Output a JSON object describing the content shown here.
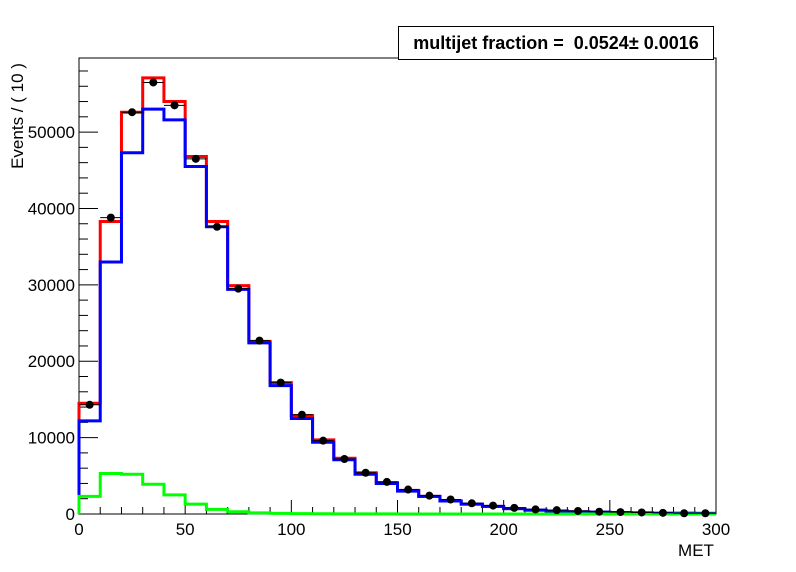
{
  "chart_data": {
    "type": "histogram",
    "xlabel": "MET",
    "ylabel": "Events / ( 10 )",
    "xlim": [
      0,
      300
    ],
    "ylim": [
      0,
      59700
    ],
    "x_ticks": [
      0,
      50,
      100,
      150,
      200,
      250,
      300
    ],
    "y_ticks": [
      0,
      10000,
      20000,
      30000,
      40000,
      50000
    ],
    "bin_edges": [
      0,
      10,
      20,
      30,
      40,
      50,
      60,
      70,
      80,
      90,
      100,
      110,
      120,
      130,
      140,
      150,
      160,
      170,
      180,
      190,
      200,
      210,
      220,
      230,
      240,
      250,
      260,
      270,
      280,
      290,
      300
    ],
    "data_points": {
      "x": [
        5,
        15,
        25,
        35,
        45,
        55,
        65,
        75,
        85,
        95,
        105,
        115,
        125,
        135,
        145,
        155,
        165,
        175,
        185,
        195,
        205,
        215,
        225,
        235,
        245,
        255,
        265,
        275,
        285,
        295
      ],
      "y": [
        14300,
        38800,
        52600,
        56500,
        53500,
        46500,
        37600,
        29500,
        22700,
        17200,
        13000,
        9600,
        7200,
        5400,
        4200,
        3200,
        2400,
        1900,
        1400,
        1100,
        800,
        600,
        500,
        400,
        300,
        250,
        200,
        150,
        100,
        100
      ],
      "color": "#000000"
    },
    "series": [
      {
        "color": "#ff0000",
        "values": [
          14500,
          38300,
          52600,
          57100,
          54000,
          46800,
          38300,
          29900,
          22600,
          17200,
          12900,
          9700,
          7300,
          5400,
          4100,
          3100,
          2300,
          1700,
          1300,
          1000,
          700,
          500,
          400,
          300,
          250,
          200,
          150,
          100,
          100,
          80
        ]
      },
      {
        "color": "#0000ff",
        "values": [
          12200,
          33000,
          47300,
          53000,
          51600,
          45500,
          37600,
          29400,
          22400,
          16800,
          12500,
          9400,
          7100,
          5200,
          4000,
          3000,
          2300,
          1700,
          1300,
          1000,
          700,
          500,
          400,
          300,
          250,
          200,
          150,
          100,
          100,
          80
        ]
      },
      {
        "color": "#00ff00",
        "values": [
          2300,
          5300,
          5200,
          3900,
          2500,
          1300,
          600,
          300,
          150,
          80,
          50,
          30,
          20,
          10,
          10,
          0,
          0,
          0,
          0,
          0,
          0,
          0,
          0,
          0,
          0,
          0,
          0,
          0,
          0,
          0
        ]
      }
    ]
  },
  "fit_box": {
    "label": "multijet fraction =  0.0524",
    "pm": "±",
    "error": " 0.0016"
  }
}
